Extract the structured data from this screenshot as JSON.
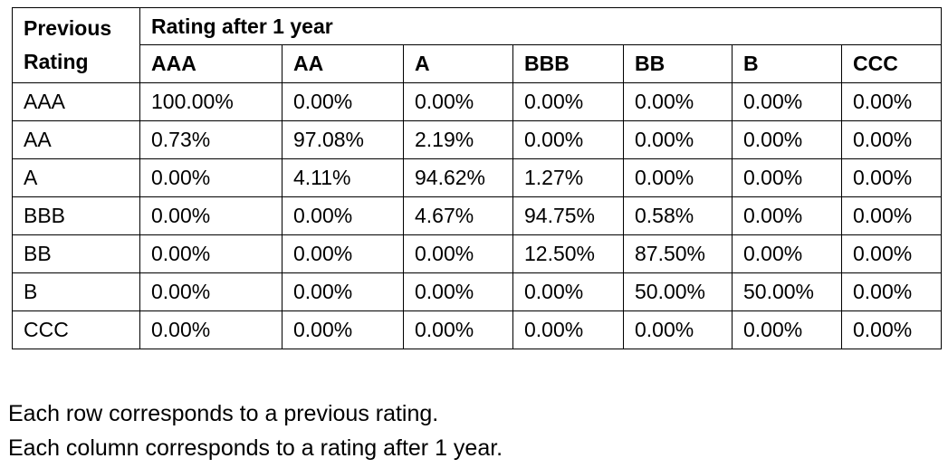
{
  "table": {
    "row_header_line1": "Previous",
    "row_header_line2": "Rating",
    "column_group_title": "Rating after 1 year",
    "columns": [
      "AAA",
      "AA",
      "A",
      "BBB",
      "BB",
      "B",
      "CCC"
    ],
    "rows": [
      {
        "rating": "AAA",
        "values": [
          "100.00%",
          "0.00%",
          "0.00%",
          "0.00%",
          "0.00%",
          "0.00%",
          "0.00%"
        ]
      },
      {
        "rating": "AA",
        "values": [
          "0.73%",
          "97.08%",
          "2.19%",
          "0.00%",
          "0.00%",
          "0.00%",
          "0.00%"
        ]
      },
      {
        "rating": "A",
        "values": [
          "0.00%",
          "4.11%",
          "94.62%",
          "1.27%",
          "0.00%",
          "0.00%",
          "0.00%"
        ]
      },
      {
        "rating": "BBB",
        "values": [
          "0.00%",
          "0.00%",
          "4.67%",
          "94.75%",
          "0.58%",
          "0.00%",
          "0.00%"
        ]
      },
      {
        "rating": "BB",
        "values": [
          "0.00%",
          "0.00%",
          "0.00%",
          "12.50%",
          "87.50%",
          "0.00%",
          "0.00%"
        ]
      },
      {
        "rating": "B",
        "values": [
          "0.00%",
          "0.00%",
          "0.00%",
          "0.00%",
          "50.00%",
          "50.00%",
          "0.00%"
        ]
      },
      {
        "rating": "CCC",
        "values": [
          "0.00%",
          "0.00%",
          "0.00%",
          "0.00%",
          "0.00%",
          "0.00%",
          "0.00%"
        ]
      }
    ]
  },
  "notes": [
    "Each row corresponds to a previous rating.",
    "Each column corresponds to a rating after 1 year."
  ]
}
